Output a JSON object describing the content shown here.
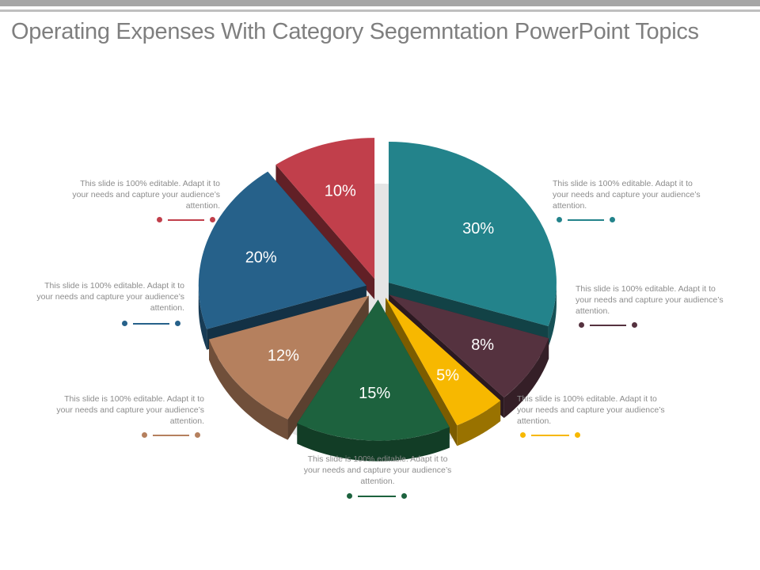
{
  "slide": {
    "title": "Operating Expenses With Category Segemntation PowerPoint Topics"
  },
  "chart_data": {
    "type": "pie",
    "title": "Operating Expenses With Category Segemntation PowerPoint Topics",
    "unit": "%",
    "slices": [
      {
        "label": "30%",
        "value": 30,
        "color": "#23838b"
      },
      {
        "label": "8%",
        "value": 8,
        "color": "#55323f"
      },
      {
        "label": "5%",
        "value": 5,
        "color": "#f7b800"
      },
      {
        "label": "15%",
        "value": 15,
        "color": "#1d623e"
      },
      {
        "label": "12%",
        "value": 12,
        "color": "#b5805e"
      },
      {
        "label": "20%",
        "value": 20,
        "color": "#26618a"
      },
      {
        "label": "10%",
        "value": 10,
        "color": "#c13f4b"
      }
    ]
  },
  "notes": [
    {
      "text": "This slide is 100% editable. Adapt it to your needs and capture your audience’s attention.",
      "color": "#23838b"
    },
    {
      "text": "This slide is 100% editable. Adapt it to your needs and capture your audience’s attention.",
      "color": "#55323f"
    },
    {
      "text": "This slide is 100% editable. Adapt it to your needs and capture your audience’s attention.",
      "color": "#f7b800"
    },
    {
      "text": "This slide is 100% editable. Adapt it to your needs and capture your audience’s attention.",
      "color": "#1d623e"
    },
    {
      "text": "This slide is 100% editable. Adapt it to your needs and capture your audience’s attention.",
      "color": "#b5805e"
    },
    {
      "text": "This slide is 100% editable. Adapt it to your needs and capture your audience’s attention.",
      "color": "#26618a"
    },
    {
      "text": "This slide is 100% editable. Adapt it to your needs and capture your audience’s attention.",
      "color": "#c13f4b"
    }
  ]
}
